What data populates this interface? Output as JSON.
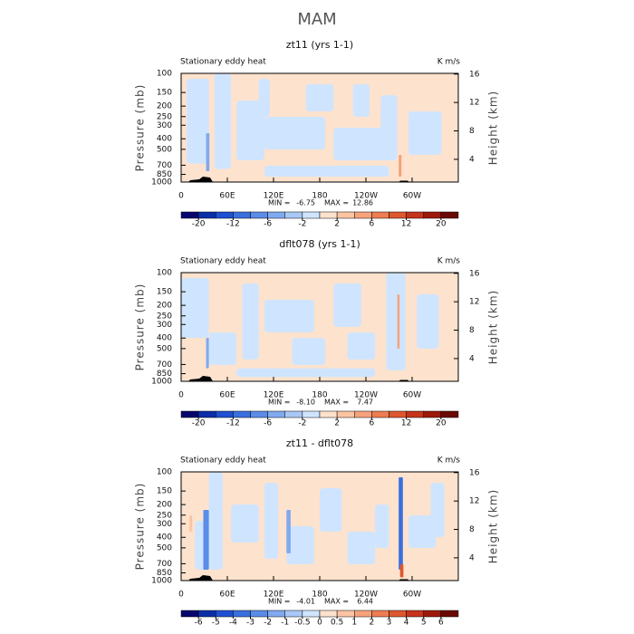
{
  "title": "MAM",
  "chart_data": [
    {
      "type": "contour",
      "title": "zt11 (yrs 1-1)",
      "left_string": "Stationary eddy heat",
      "right_string": "K m/s",
      "ylabel": "Pressure (mb)",
      "y2label": "Height (km)",
      "xlim": [
        0,
        360
      ],
      "xticks": [
        0,
        {
          "value": 60,
          "label": "60E"
        },
        {
          "value": 120,
          "label": "120E"
        },
        180,
        {
          "value": 240,
          "label": "120W"
        },
        {
          "value": 300,
          "label": "60W"
        }
      ],
      "yscale": "log",
      "ylim": [
        1000,
        100
      ],
      "yticks": [
        100,
        150,
        200,
        250,
        300,
        400,
        500,
        700,
        850,
        1000
      ],
      "y2lim": [
        0.8,
        16.1
      ],
      "y2ticks": [
        4,
        8,
        12,
        16
      ],
      "min_text": "MIN =",
      "min": -6.75,
      "max_text": "MAX =",
      "max": 12.86,
      "colorbar": {
        "levels": [
          -20,
          -16,
          -12,
          -8,
          -6,
          -4,
          -2,
          0,
          2,
          4,
          6,
          8,
          12,
          16,
          20
        ],
        "label_stride": 2,
        "colors": [
          "#06066e",
          "#0b2ea8",
          "#1f4fd2",
          "#3a6fdf",
          "#5b8ce8",
          "#80a9ef",
          "#a9c8f6",
          "#cfe5ff",
          "#fde2cd",
          "#fbc4a3",
          "#f6a27b",
          "#ee7d52",
          "#de572f",
          "#c6341a",
          "#9e190b",
          "#6a0804"
        ]
      }
    },
    {
      "type": "contour",
      "title": "dflt078 (yrs 1-1)",
      "left_string": "Stationary eddy heat",
      "right_string": "K m/s",
      "ylabel": "Pressure (mb)",
      "y2label": "Height (km)",
      "xlim": [
        0,
        360
      ],
      "xticks": [
        0,
        {
          "value": 60,
          "label": "60E"
        },
        {
          "value": 120,
          "label": "120E"
        },
        180,
        {
          "value": 240,
          "label": "120W"
        },
        {
          "value": 300,
          "label": "60W"
        }
      ],
      "yscale": "log",
      "ylim": [
        1000,
        100
      ],
      "yticks": [
        100,
        150,
        200,
        250,
        300,
        400,
        500,
        700,
        850,
        1000
      ],
      "y2lim": [
        0.8,
        16.1
      ],
      "y2ticks": [
        4,
        8,
        12,
        16
      ],
      "min_text": "MIN =",
      "min": {
        "value": -8.1,
        "label": "-8.10"
      },
      "max_text": "MAX =",
      "max": 7.47,
      "colorbar": {
        "levels": [
          -20,
          -16,
          -12,
          -8,
          -6,
          -4,
          -2,
          0,
          2,
          4,
          6,
          8,
          12,
          16,
          20
        ],
        "label_stride": 2,
        "colors": [
          "#06066e",
          "#0b2ea8",
          "#1f4fd2",
          "#3a6fdf",
          "#5b8ce8",
          "#80a9ef",
          "#a9c8f6",
          "#cfe5ff",
          "#fde2cd",
          "#fbc4a3",
          "#f6a27b",
          "#ee7d52",
          "#de572f",
          "#c6341a",
          "#9e190b",
          "#6a0804"
        ]
      }
    },
    {
      "type": "contour",
      "title": "zt11 - dflt078",
      "left_string": "Stationary eddy heat",
      "right_string": "K m/s",
      "ylabel": "Pressure (mb)",
      "y2label": "Height (km)",
      "xlim": [
        0,
        360
      ],
      "xticks": [
        0,
        {
          "value": 60,
          "label": "60E"
        },
        {
          "value": 120,
          "label": "120E"
        },
        180,
        {
          "value": 240,
          "label": "120W"
        },
        {
          "value": 300,
          "label": "60W"
        }
      ],
      "yscale": "log",
      "ylim": [
        1000,
        100
      ],
      "yticks": [
        100,
        150,
        200,
        250,
        300,
        400,
        500,
        700,
        850,
        1000
      ],
      "y2lim": [
        0.8,
        16.1
      ],
      "y2ticks": [
        4,
        8,
        12,
        16
      ],
      "min_text": "MIN =",
      "min": -4.01,
      "max_text": "MAX =",
      "max": 6.44,
      "colorbar": {
        "levels": [
          -6,
          -5,
          -4,
          -3,
          -2,
          -1,
          -0.5,
          0,
          0.5,
          1,
          2,
          3,
          4,
          5,
          6
        ],
        "label_stride": 1,
        "colors": [
          "#06066e",
          "#0b2ea8",
          "#1f4fd2",
          "#3a6fdf",
          "#5b8ce8",
          "#80a9ef",
          "#a9c8f6",
          "#cfe5ff",
          "#fde2cd",
          "#fbc4a3",
          "#f6a27b",
          "#ee7d52",
          "#de572f",
          "#c6341a",
          "#9e190b",
          "#6a0804"
        ]
      }
    }
  ]
}
